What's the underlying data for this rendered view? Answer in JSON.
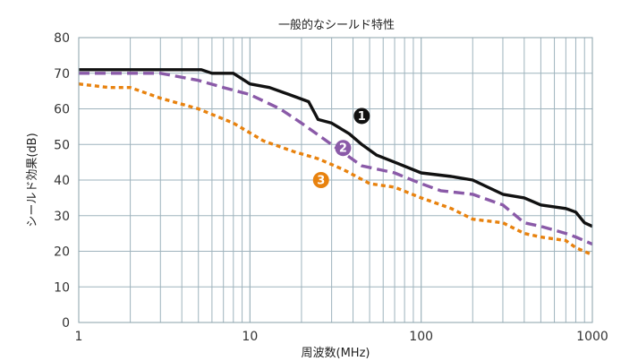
{
  "chart_data": {
    "type": "line",
    "title": "一般的なシールド特性",
    "xlabel": "周波数(MHz)",
    "ylabel": "シールド効果(dB)",
    "x_scale": "log",
    "xlim": [
      1,
      1000
    ],
    "ylim": [
      0,
      80
    ],
    "grid": true,
    "x_ticks": [
      "1",
      "10",
      "100",
      "1000"
    ],
    "y_ticks": [
      "0",
      "10",
      "20",
      "30",
      "40",
      "50",
      "60",
      "70",
      "80"
    ],
    "series": [
      {
        "marker": "❶",
        "color": "#111111",
        "style": "solid",
        "x": [
          1,
          3,
          5.2,
          6,
          8,
          10,
          13,
          17,
          22,
          25,
          30,
          38,
          45,
          55,
          70,
          100,
          150,
          200,
          300,
          400,
          500,
          700,
          800,
          900,
          1000
        ],
        "y": [
          71,
          71,
          71,
          70,
          70,
          67,
          66,
          64,
          62,
          57,
          56,
          53,
          50,
          47,
          45,
          42,
          41,
          40,
          36,
          35,
          33,
          32,
          31,
          28,
          27
        ]
      },
      {
        "marker": "❷",
        "color": "#8a5aa8",
        "style": "dashed",
        "x": [
          1,
          2,
          3,
          5,
          7,
          10,
          15,
          20,
          30,
          45,
          70,
          100,
          130,
          200,
          300,
          400,
          500,
          700,
          800,
          1000
        ],
        "y": [
          70,
          70,
          70,
          68,
          66,
          64,
          60,
          56,
          50,
          44,
          42,
          39,
          37,
          36,
          33,
          28,
          27,
          25,
          24,
          22
        ]
      },
      {
        "marker": "❸",
        "color": "#e8820e",
        "style": "dotted",
        "x": [
          1,
          1.5,
          2,
          3,
          5,
          8,
          12,
          18,
          25,
          35,
          50,
          70,
          100,
          150,
          200,
          300,
          400,
          500,
          700,
          800,
          1000
        ],
        "y": [
          67,
          66,
          66,
          63,
          60,
          56,
          51,
          48,
          46,
          43,
          39,
          38,
          35,
          32,
          29,
          28,
          25,
          24,
          23,
          21,
          19
        ]
      }
    ],
    "annotations": [
      {
        "text": "❶",
        "x": 45,
        "y": 58
      },
      {
        "text": "❷",
        "x": 35,
        "y": 49
      },
      {
        "text": "❸",
        "x": 26,
        "y": 40
      }
    ]
  }
}
